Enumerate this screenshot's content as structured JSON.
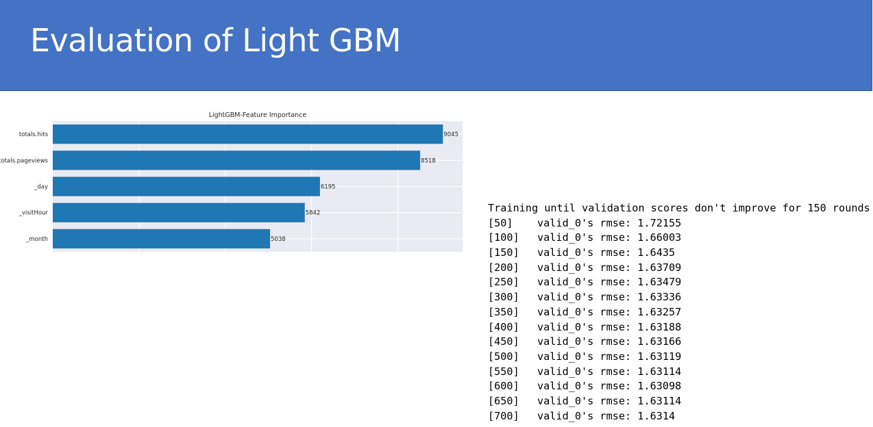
{
  "slide": {
    "title": "Evaluation of Light GBM"
  },
  "chart_data": {
    "type": "bar",
    "orientation": "horizontal",
    "title": "LightGBM-Feature Importance",
    "categories": [
      "totals.hits",
      "totals.pageviews",
      "_day",
      "_visitHour",
      "_month"
    ],
    "values": [
      9045,
      8518,
      6195,
      5842,
      5038
    ],
    "xlabel": "",
    "ylabel": "",
    "xlim": [
      0,
      9500
    ],
    "grid": true,
    "grid_ticks": [
      2000,
      4000,
      6000,
      8000
    ],
    "bar_color": "#1f77b4",
    "background_color": "#eaeaf2"
  },
  "training_log": {
    "header": "Training until validation scores don't improve for 150 rounds",
    "entries": [
      {
        "round": "[50]",
        "text": "valid_0's rmse: 1.72155"
      },
      {
        "round": "[100]",
        "text": "valid_0's rmse: 1.66003"
      },
      {
        "round": "[150]",
        "text": "valid_0's rmse: 1.6435"
      },
      {
        "round": "[200]",
        "text": "valid_0's rmse: 1.63709"
      },
      {
        "round": "[250]",
        "text": "valid_0's rmse: 1.63479"
      },
      {
        "round": "[300]",
        "text": "valid_0's rmse: 1.63336"
      },
      {
        "round": "[350]",
        "text": "valid_0's rmse: 1.63257"
      },
      {
        "round": "[400]",
        "text": "valid_0's rmse: 1.63188"
      },
      {
        "round": "[450]",
        "text": "valid_0's rmse: 1.63166"
      },
      {
        "round": "[500]",
        "text": "valid_0's rmse: 1.63119"
      },
      {
        "round": "[550]",
        "text": "valid_0's rmse: 1.63114"
      },
      {
        "round": "[600]",
        "text": "valid_0's rmse: 1.63098"
      },
      {
        "round": "[650]",
        "text": "valid_0's rmse: 1.63114"
      },
      {
        "round": "[700]",
        "text": "valid_0's rmse: 1.6314"
      }
    ]
  }
}
